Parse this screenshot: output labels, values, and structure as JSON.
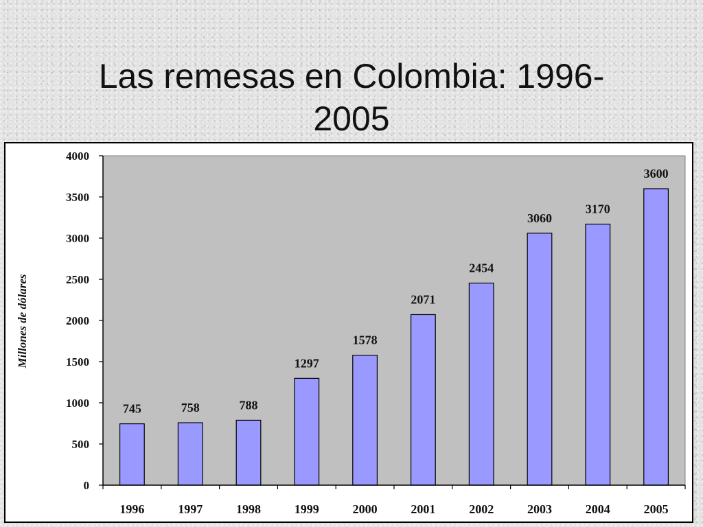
{
  "slide": {
    "title_line1": "Las remesas en Colombia: 1996-",
    "title_line2": "2005"
  },
  "chart_data": {
    "type": "bar",
    "ylabel": "Millones de dólares",
    "xlabel": "",
    "categories": [
      "1996",
      "1997",
      "1998",
      "1999",
      "2000",
      "2001",
      "2002",
      "2003",
      "2004",
      "2005"
    ],
    "values": [
      745,
      758,
      788,
      1297,
      1578,
      2071,
      2454,
      3060,
      3170,
      3600
    ],
    "data_labels": [
      "745",
      "758",
      "788",
      "1297",
      "1578",
      "2071",
      "2454",
      "3060",
      "3170",
      "3600"
    ],
    "ylim": [
      0,
      4000
    ],
    "yticks": [
      0,
      500,
      1000,
      1500,
      2000,
      2500,
      3000,
      3500,
      4000
    ],
    "ytick_labels": [
      "0",
      "500",
      "1000",
      "1500",
      "2000",
      "2500",
      "3000",
      "3500",
      "4000"
    ],
    "grid": false,
    "legend": "none",
    "colors": {
      "bar_fill": "#9999ff",
      "bar_stroke": "#000000",
      "plot_background": "#c0c0c0",
      "frame_background": "#ffffff"
    }
  }
}
